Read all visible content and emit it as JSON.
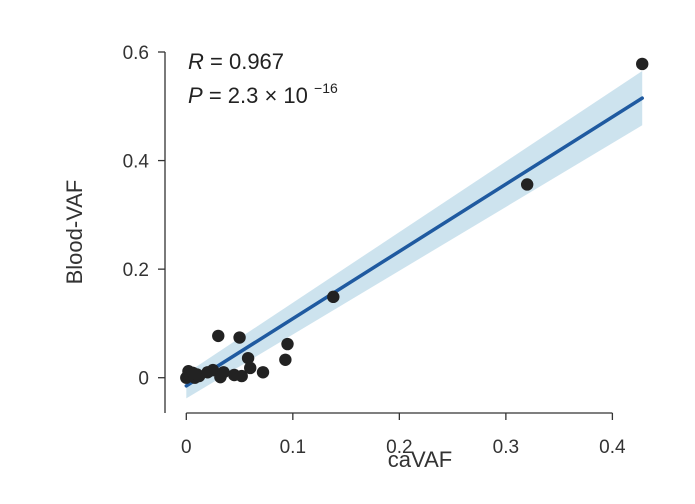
{
  "chart_data": {
    "type": "scatter",
    "title": "",
    "xlabel": "caVAF",
    "ylabel": "Blood-VAF",
    "xlim": [
      -0.02,
      0.44
    ],
    "ylim": [
      -0.065,
      0.6
    ],
    "xticks": [
      0,
      0.1,
      0.2,
      0.3,
      0.4
    ],
    "xtick_labels": [
      "0",
      "0.1",
      "0.2",
      "0.3",
      "0.4"
    ],
    "yticks": [
      0,
      0.2,
      0.4,
      0.6
    ],
    "ytick_labels": [
      "0",
      "0.2",
      "0.4",
      "0.6"
    ],
    "grid": false,
    "annotation": {
      "r_symbol": "R",
      "r_value": "= 0.967",
      "p_symbol": "P",
      "p_value": "= 2.3 × 10",
      "p_exponent": "−16"
    },
    "points": [
      {
        "x": 0.0,
        "y": 0.0
      },
      {
        "x": 0.002,
        "y": 0.012
      },
      {
        "x": 0.004,
        "y": 0.004
      },
      {
        "x": 0.006,
        "y": 0.009
      },
      {
        "x": 0.008,
        "y": 0.0
      },
      {
        "x": 0.01,
        "y": 0.006
      },
      {
        "x": 0.012,
        "y": 0.003
      },
      {
        "x": 0.02,
        "y": 0.01
      },
      {
        "x": 0.025,
        "y": 0.014
      },
      {
        "x": 0.03,
        "y": 0.077
      },
      {
        "x": 0.032,
        "y": 0.001
      },
      {
        "x": 0.035,
        "y": 0.01
      },
      {
        "x": 0.045,
        "y": 0.005
      },
      {
        "x": 0.05,
        "y": 0.074
      },
      {
        "x": 0.052,
        "y": 0.003
      },
      {
        "x": 0.058,
        "y": 0.036
      },
      {
        "x": 0.06,
        "y": 0.018
      },
      {
        "x": 0.072,
        "y": 0.01
      },
      {
        "x": 0.093,
        "y": 0.033
      },
      {
        "x": 0.095,
        "y": 0.062
      },
      {
        "x": 0.138,
        "y": 0.149
      },
      {
        "x": 0.32,
        "y": 0.356
      },
      {
        "x": 0.428,
        "y": 0.578
      }
    ],
    "fit": {
      "x": [
        0.0,
        0.428
      ],
      "y": [
        -0.015,
        0.515
      ],
      "ci_upper": [
        0.008,
        0.565
      ],
      "ci_lower": [
        -0.038,
        0.465
      ]
    },
    "colors": {
      "points": "#222222",
      "fit_line": "#1f5aa0",
      "ci_band": "#c8e0ec",
      "axis": "#333333"
    }
  }
}
